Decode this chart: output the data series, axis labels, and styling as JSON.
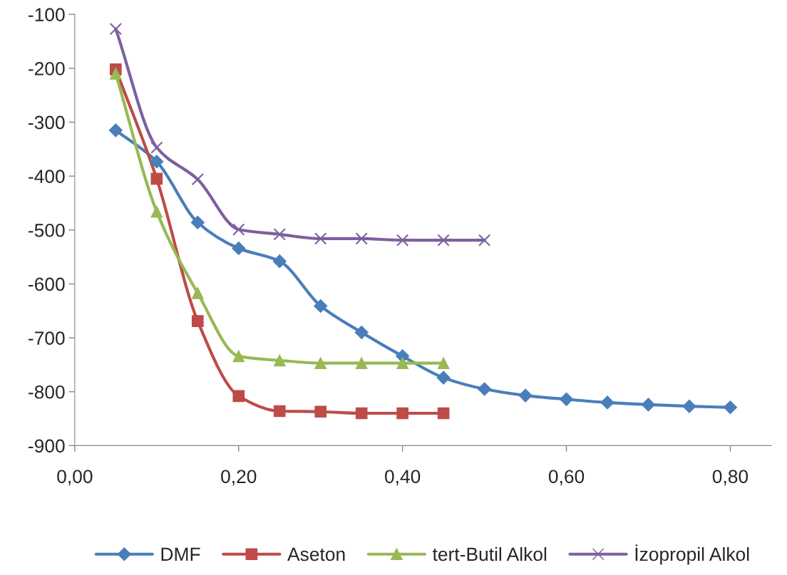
{
  "chart_data": {
    "type": "line",
    "legend": "bottom",
    "grid": false,
    "line_style": "solid",
    "xlim": [
      0,
      0.85
    ],
    "ylim": [
      -900,
      -100
    ],
    "xticks": [
      {
        "value": 0,
        "label": "0,00"
      },
      {
        "value": 0.2,
        "label": "0,20"
      },
      {
        "value": 0.4,
        "label": "0,40"
      },
      {
        "value": 0.6,
        "label": "0,60"
      },
      {
        "value": 0.8,
        "label": "0,80"
      }
    ],
    "yticks": [
      -900,
      -800,
      -700,
      -600,
      -500,
      -400,
      -300,
      -200,
      -100
    ],
    "series": [
      {
        "name": "DMF",
        "color": "#4a7ebb",
        "marker": "diamond",
        "x": [
          0.05,
          0.1,
          0.15,
          0.2,
          0.25,
          0.3,
          0.35,
          0.4,
          0.45,
          0.5,
          0.55,
          0.6,
          0.65,
          0.7,
          0.75,
          0.8
        ],
        "values": [
          -315,
          -373,
          -486,
          -534,
          -558,
          -641,
          -690,
          -734,
          -774,
          -795,
          -807,
          -814,
          -820,
          -824,
          -827,
          -829
        ]
      },
      {
        "name": "Aseton",
        "color": "#be4b48",
        "marker": "square",
        "x": [
          0.05,
          0.1,
          0.15,
          0.2,
          0.25,
          0.3,
          0.35,
          0.4,
          0.45
        ],
        "values": [
          -202,
          -405,
          -669,
          -808,
          -836,
          -837,
          -840,
          -840,
          -840
        ]
      },
      {
        "name": "tert-Butil Alkol",
        "color": "#98b954",
        "marker": "triangle",
        "x": [
          0.05,
          0.1,
          0.15,
          0.2,
          0.25,
          0.3,
          0.35,
          0.4,
          0.45
        ],
        "values": [
          -210,
          -466,
          -617,
          -734,
          -742,
          -747,
          -747,
          -747,
          -747
        ]
      },
      {
        "name": "İzopropil Alkol",
        "color": "#7d60a0",
        "marker": "cross",
        "x": [
          0.05,
          0.1,
          0.15,
          0.2,
          0.25,
          0.3,
          0.35,
          0.4,
          0.45,
          0.5
        ],
        "values": [
          -127,
          -347,
          -406,
          -499,
          -508,
          -516,
          -516,
          -519,
          -519,
          -519
        ]
      }
    ]
  }
}
